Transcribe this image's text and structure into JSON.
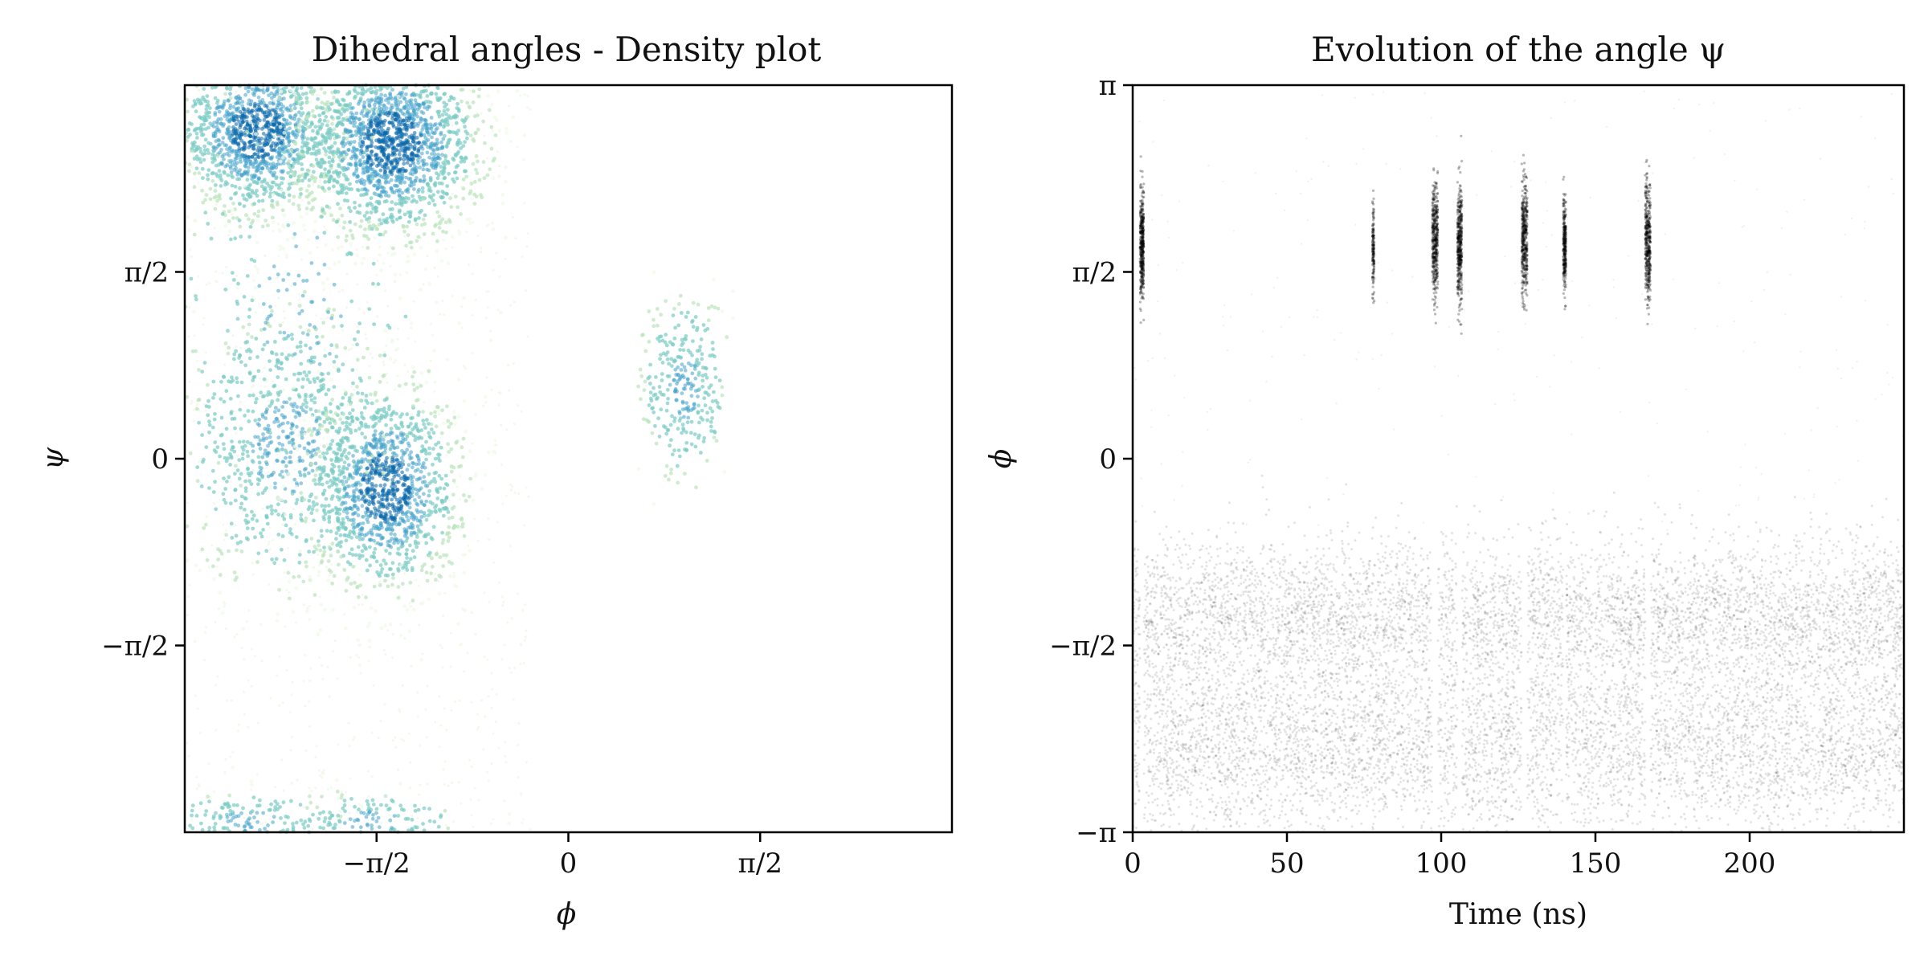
{
  "chart_data": [
    {
      "type": "scatter",
      "title": "Dihedral angles - Density plot",
      "xlabel": "ϕ",
      "ylabel": "ψ",
      "xlim": [
        -3.14159,
        3.14159
      ],
      "ylim": [
        -3.14159,
        3.14159
      ],
      "xticks": [
        {
          "value": -1.5708,
          "label": "−π/2"
        },
        {
          "value": 0,
          "label": "0"
        },
        {
          "value": 1.5708,
          "label": "π/2"
        }
      ],
      "yticks": [
        {
          "value": -1.5708,
          "label": "−π/2"
        },
        {
          "value": 0,
          "label": "0"
        },
        {
          "value": 1.5708,
          "label": "π/2"
        }
      ],
      "colormap": [
        "#f0f9e8",
        "#bae4bc",
        "#7bccc4",
        "#43a2ca",
        "#0868ac"
      ],
      "clusters": [
        {
          "phi": -2.55,
          "psi": 2.75,
          "sphi": 0.32,
          "spsi": 0.34,
          "weight": 1.0
        },
        {
          "phi": -1.45,
          "psi": 2.65,
          "sphi": 0.36,
          "spsi": 0.38,
          "weight": 1.3
        },
        {
          "phi": -2.3,
          "psi": 0.1,
          "sphi": 0.42,
          "spsi": 0.55,
          "weight": 0.55
        },
        {
          "phi": -1.5,
          "psi": -0.25,
          "sphi": 0.3,
          "spsi": 0.42,
          "weight": 0.9
        },
        {
          "phi": 0.95,
          "psi": 0.6,
          "sphi": 0.17,
          "spsi": 0.38,
          "weight": 0.22
        },
        {
          "phi": -2.6,
          "psi": -3.05,
          "sphi": 0.35,
          "spsi": 0.12,
          "weight": 0.12
        },
        {
          "phi": -1.6,
          "psi": -3.05,
          "sphi": 0.35,
          "spsi": 0.12,
          "weight": 0.1
        },
        {
          "phi": -2.2,
          "psi": 1.3,
          "sphi": 0.5,
          "spsi": 0.9,
          "weight": 0.18
        }
      ]
    },
    {
      "type": "scatter",
      "title": "Evolution of the angle ψ",
      "xlabel": "Time (ns)",
      "ylabel": "ϕ",
      "xlim": [
        0,
        250
      ],
      "ylim": [
        -3.14159,
        3.14159
      ],
      "xticks": [
        {
          "value": 0,
          "label": "0"
        },
        {
          "value": 50,
          "label": "50"
        },
        {
          "value": 100,
          "label": "100"
        },
        {
          "value": 150,
          "label": "150"
        },
        {
          "value": 200,
          "label": "200"
        }
      ],
      "yticks": [
        {
          "value": -3.14159,
          "label": "−π"
        },
        {
          "value": -1.5708,
          "label": "−π/2"
        },
        {
          "value": 0,
          "label": "0"
        },
        {
          "value": 1.5708,
          "label": "π/2"
        },
        {
          "value": 3.14159,
          "label": "π"
        }
      ],
      "color": "#000000",
      "background_bands": [
        {
          "center": -2.5,
          "spread": 0.35,
          "weight": 1.0
        },
        {
          "center": -1.3,
          "spread": 0.3,
          "weight": 1.1
        },
        {
          "center": -1.9,
          "spread": 0.55,
          "weight": 0.7
        }
      ],
      "transitions": [
        {
          "time": 3,
          "width": 1.2,
          "center": 1.8,
          "spread": 0.22,
          "strength": 1.0
        },
        {
          "time": 78,
          "width": 0.6,
          "center": 1.75,
          "spread": 0.18,
          "strength": 0.35
        },
        {
          "time": 98,
          "width": 1.8,
          "center": 1.85,
          "spread": 0.25,
          "strength": 1.0
        },
        {
          "time": 106,
          "width": 1.5,
          "center": 1.8,
          "spread": 0.24,
          "strength": 1.0
        },
        {
          "time": 127,
          "width": 1.8,
          "center": 1.85,
          "spread": 0.25,
          "strength": 1.0
        },
        {
          "time": 140,
          "width": 0.9,
          "center": 1.8,
          "spread": 0.2,
          "strength": 0.7
        },
        {
          "time": 167,
          "width": 1.7,
          "center": 1.8,
          "spread": 0.25,
          "strength": 1.0
        }
      ]
    }
  ]
}
